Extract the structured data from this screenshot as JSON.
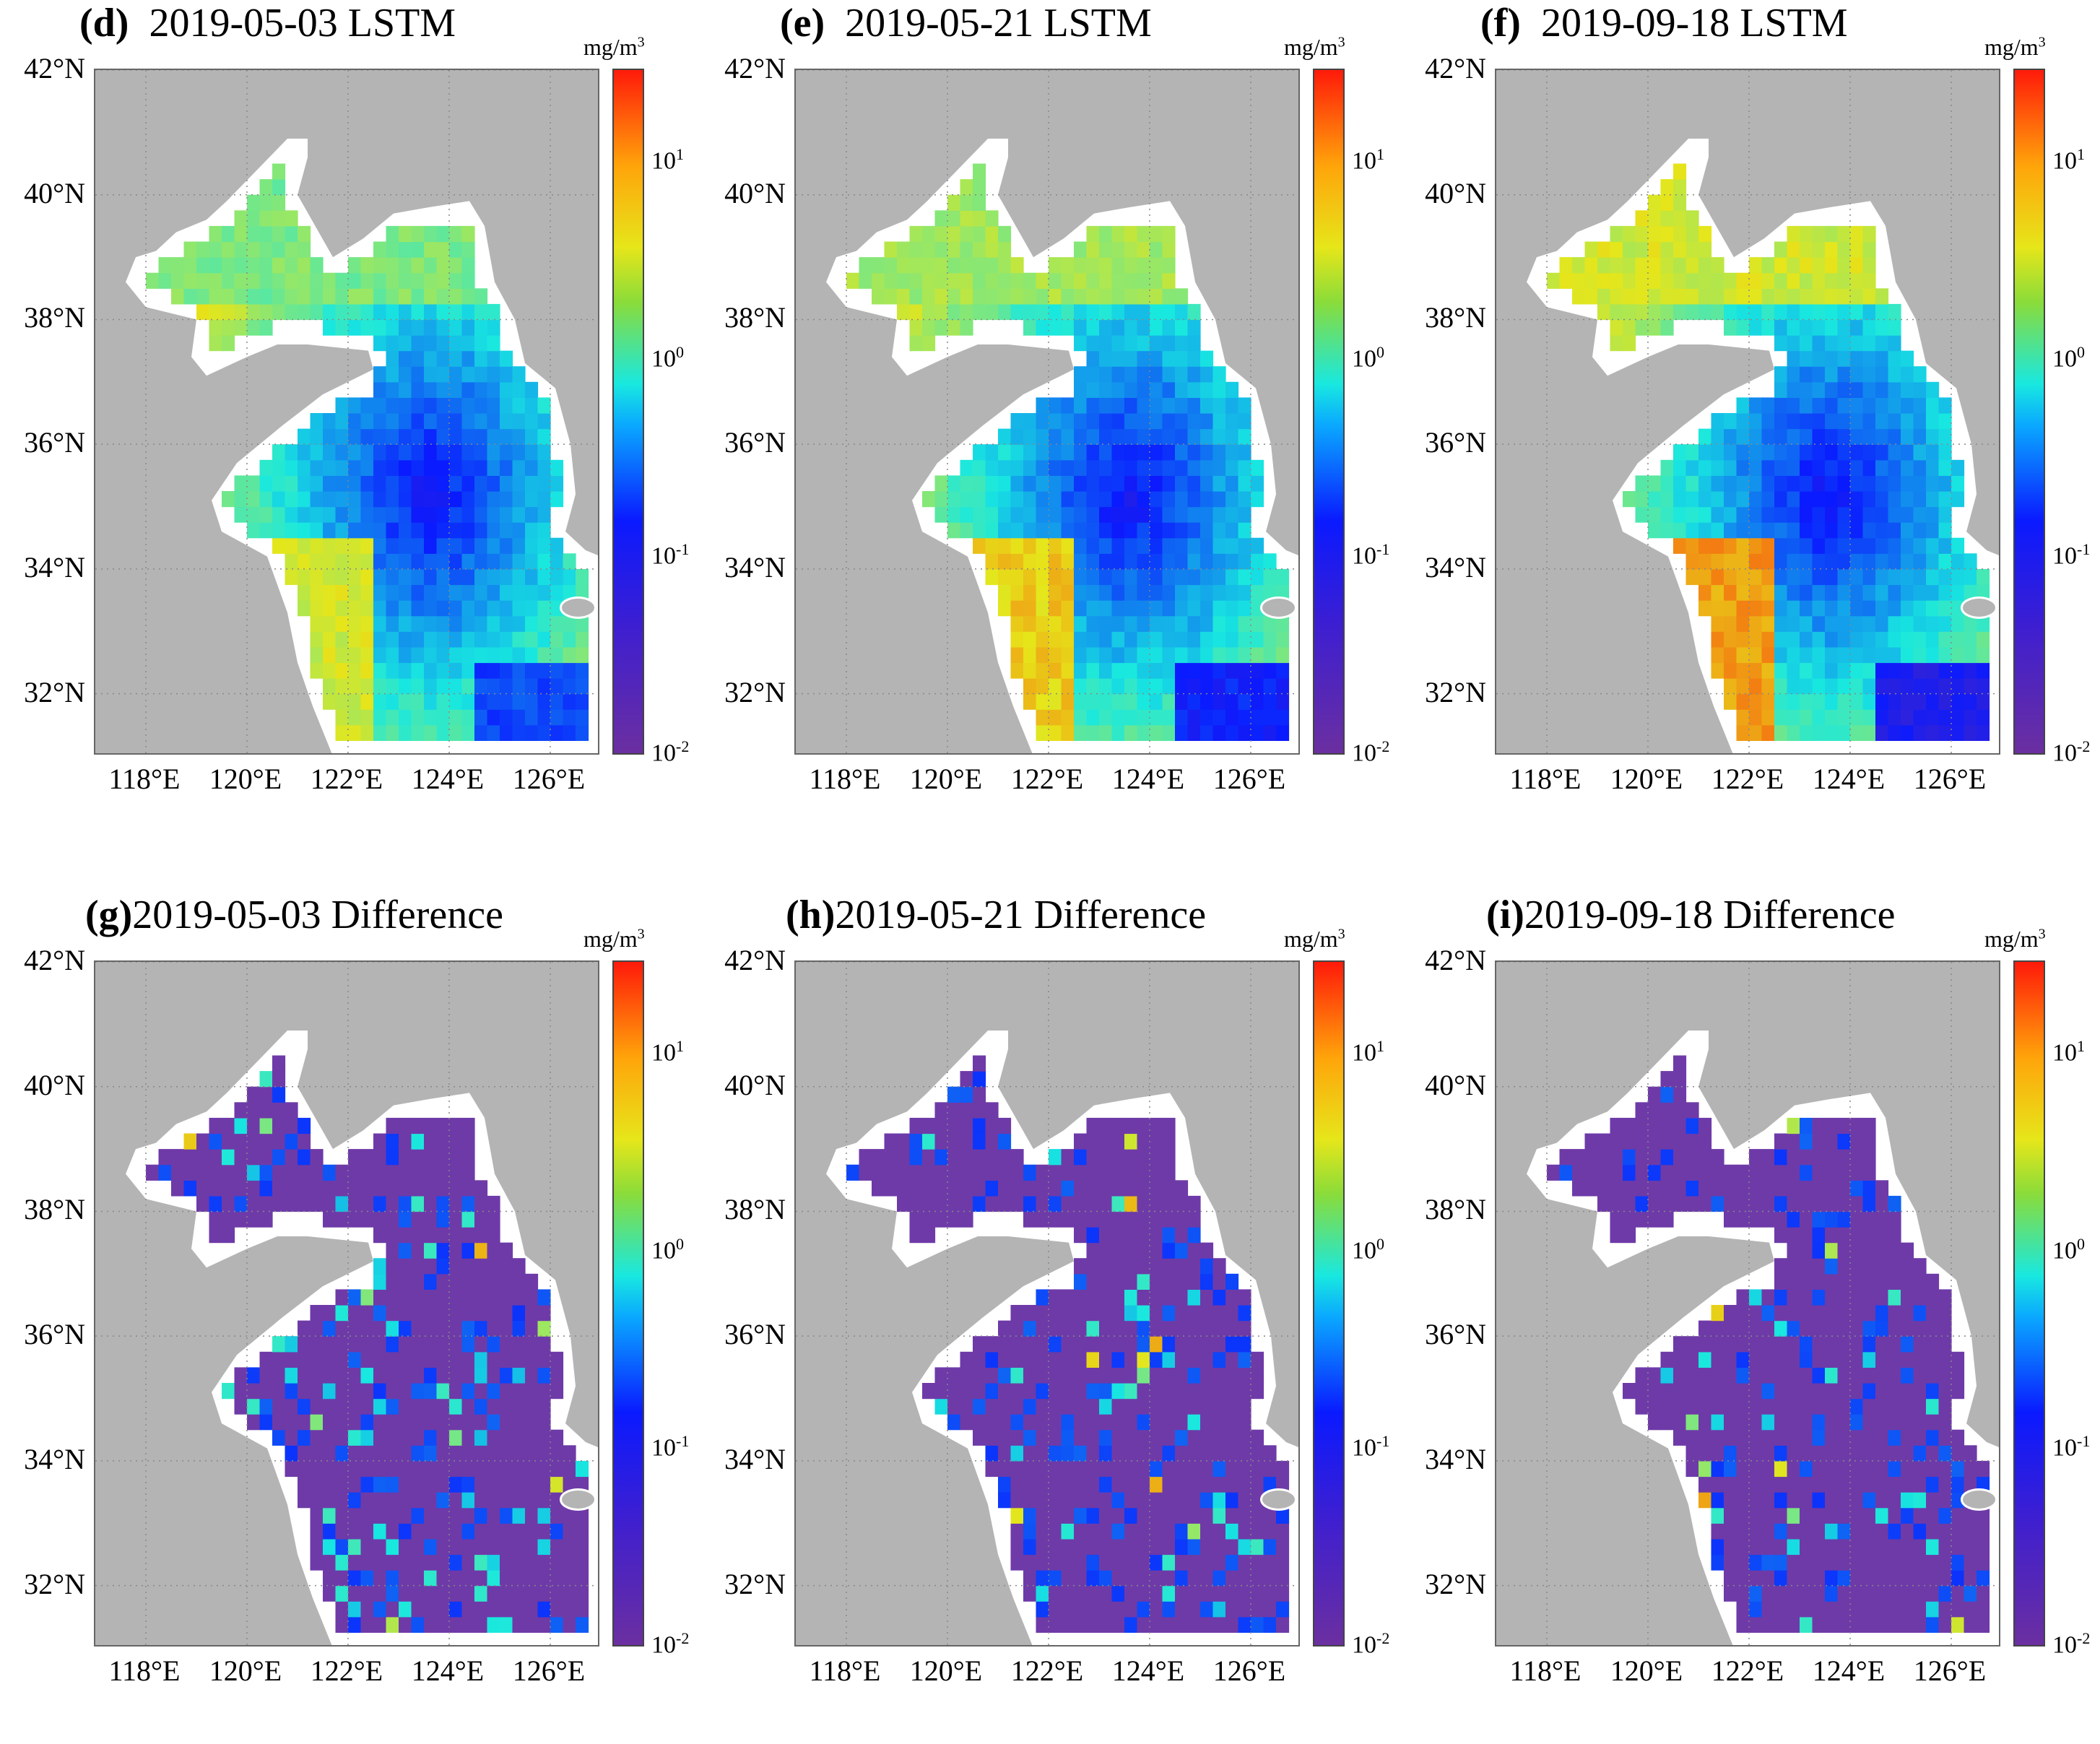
{
  "chart_data": [
    {
      "type": "heatmap",
      "panel": "(d)",
      "title": "2019-05-03 LSTM"
    },
    {
      "type": "heatmap",
      "panel": "(e)",
      "title": "2019-05-21 LSTM"
    },
    {
      "type": "heatmap",
      "panel": "(f)",
      "title": "2019-09-18 LSTM"
    },
    {
      "type": "heatmap",
      "panel": "(g)",
      "title": "2019-05-03 Difference"
    },
    {
      "type": "heatmap",
      "panel": "(h)",
      "title": "2019-05-21 Difference"
    },
    {
      "type": "heatmap",
      "panel": "(i)",
      "title": "2019-09-18 Difference"
    }
  ],
  "axes": {
    "lat_ticks": [
      "42°N",
      "40°N",
      "38°N",
      "36°N",
      "34°N",
      "32°N"
    ],
    "lon_ticks": [
      "118°E",
      "120°E",
      "122°E",
      "124°E",
      "126°E"
    ],
    "xlim": [
      117,
      127
    ],
    "ylim": [
      31,
      42
    ]
  },
  "colorbar": {
    "unit_base": "mg/m",
    "unit_exp": "3",
    "scale": "log",
    "range": [
      0.01,
      30
    ],
    "tick_base": "10",
    "tick_exps": [
      "1",
      "0",
      "-1",
      "-2"
    ],
    "colors": [
      "#6b2fa0",
      "#0a1aff",
      "#18e8e0",
      "#e6e61a",
      "#ff1a0a"
    ]
  },
  "colors": {
    "land": "#b4b4b4",
    "ocean_nodata": "#ffffff",
    "difference_base": "#6e3aa8"
  }
}
